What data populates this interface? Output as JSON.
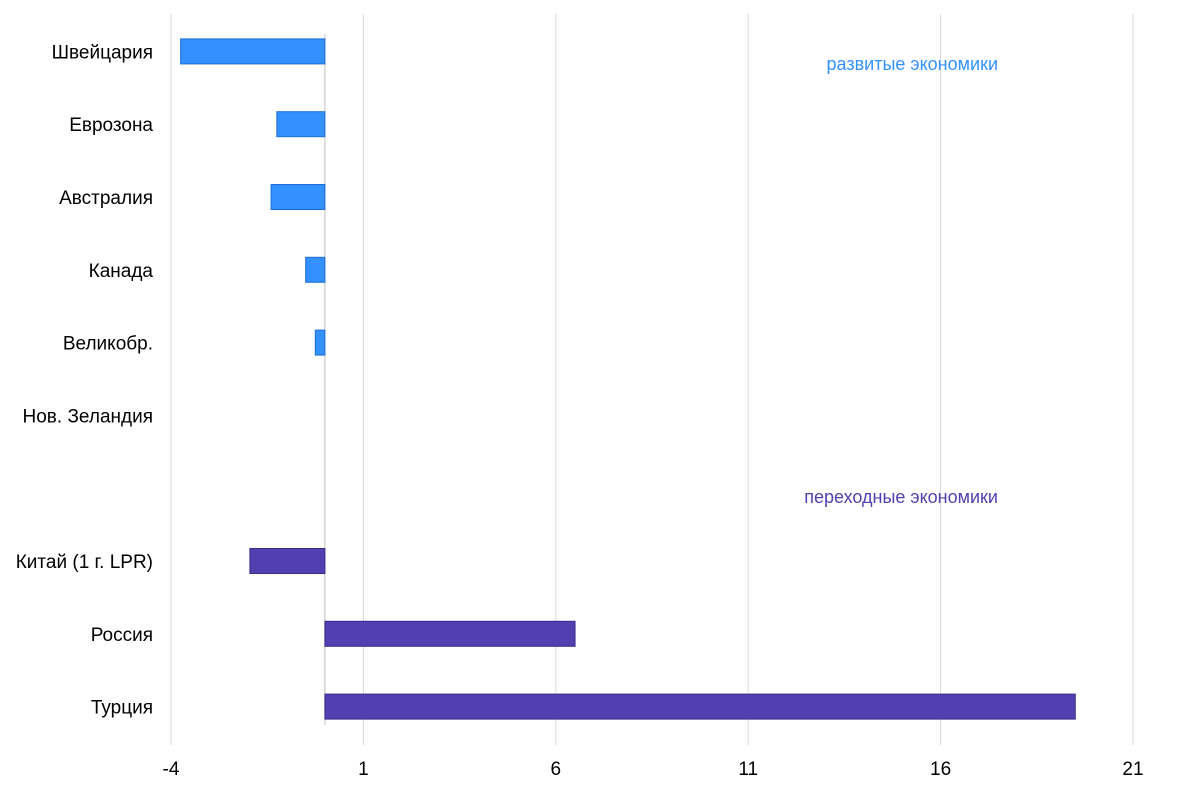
{
  "chart_data": {
    "type": "bar",
    "orientation": "horizontal",
    "title": "",
    "xlabel": "",
    "ylabel": "",
    "xlim": [
      -4,
      21
    ],
    "x_ticks": [
      -4,
      1,
      6,
      11,
      16,
      21
    ],
    "grid": true,
    "legend": "none",
    "rows": [
      {
        "label": "Швейцария",
        "value": -3.75,
        "group": "developed"
      },
      {
        "label": "Еврозона",
        "value": -1.25,
        "group": "developed"
      },
      {
        "label": "Австралия",
        "value": -1.4,
        "group": "developed"
      },
      {
        "label": "Канада",
        "value": -0.5,
        "group": "developed"
      },
      {
        "label": "Великобр.",
        "value": -0.25,
        "group": "developed"
      },
      {
        "label": "Нов. Зеландия",
        "value": 0,
        "group": "developed"
      },
      {
        "label": "",
        "value": null,
        "group": "spacer"
      },
      {
        "label": "Китай (1 г. LPR)",
        "value": -1.95,
        "group": "transition"
      },
      {
        "label": "Россия",
        "value": 6.5,
        "group": "transition"
      },
      {
        "label": "Турция",
        "value": 19.5,
        "group": "transition"
      }
    ],
    "annotations": [
      {
        "text": "развитые экономики",
        "group": "developed"
      },
      {
        "text": "переходные экономики",
        "group": "transition"
      }
    ],
    "colors": {
      "developed": "#3391ff",
      "transition": "#5240b0",
      "developed_border": "#1f6fd6",
      "transition_border": "#3a2b8c"
    }
  }
}
